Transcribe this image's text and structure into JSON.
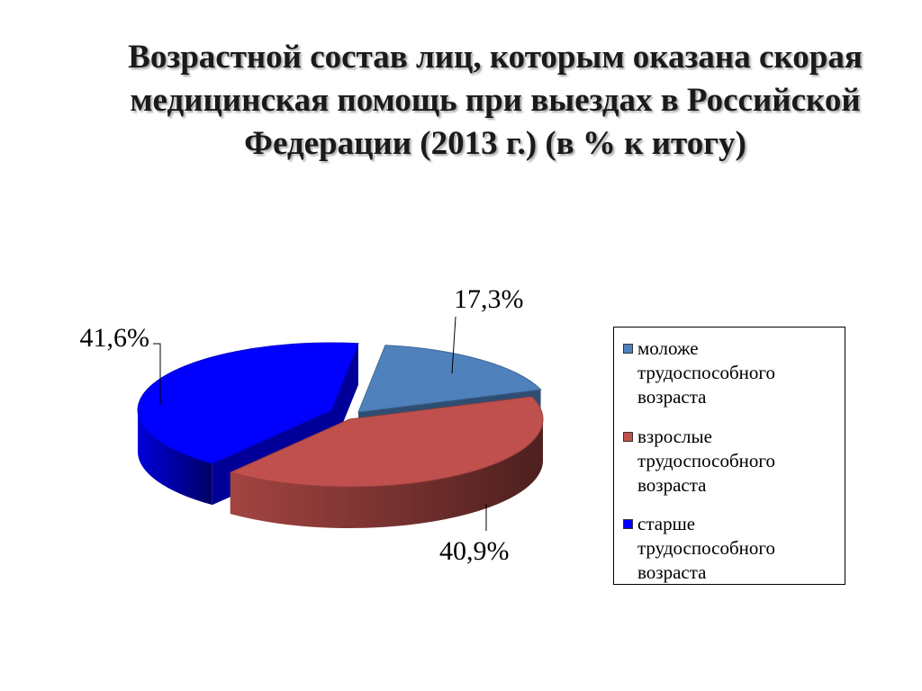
{
  "title": "Возрастной состав лиц, которым оказана скорая медицинская помощь при выездах  в Российской Федерации (2013 г.) (в % к итогу)",
  "chart_data": {
    "type": "pie",
    "title": "Возрастной состав лиц, которым оказана скорая медицинская помощь при выездах  в Российской Федерации (2013 г.) (в % к итогу)",
    "labels": [
      "моложе трудоспособного возраста",
      "взрослые трудоспособного возраста",
      "старше трудоспособного возраста"
    ],
    "values": [
      17.3,
      40.9,
      41.6
    ],
    "data_labels": [
      "17,3%",
      "40,9%",
      "41,6%"
    ],
    "colors": [
      "#4f81bd",
      "#c0504d",
      "#0000ff"
    ],
    "exploded": true,
    "three_d": true,
    "legend": "right"
  }
}
